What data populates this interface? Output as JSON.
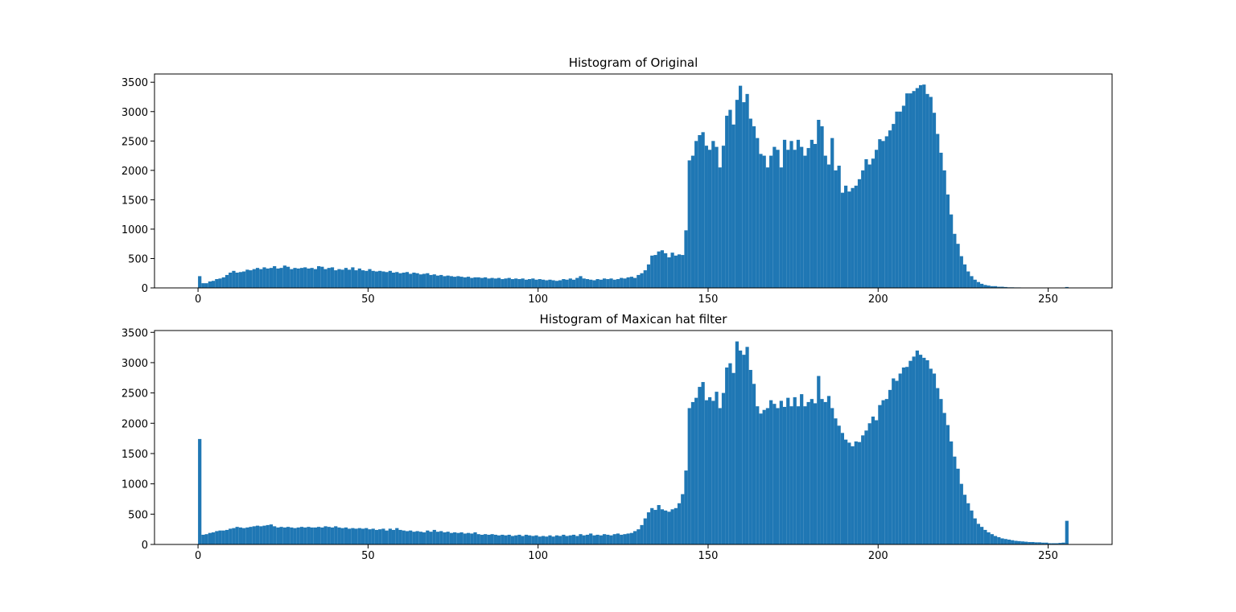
{
  "chart_data": [
    {
      "type": "histogram",
      "title": "Histogram of Original",
      "color": "#1f77b4",
      "xlim": [
        -12.8,
        268.8
      ],
      "ylim": [
        0,
        3640
      ],
      "xticks": [
        0,
        50,
        100,
        150,
        200,
        250
      ],
      "yticks": [
        0,
        500,
        1000,
        1500,
        2000,
        2500,
        3000,
        3500
      ],
      "bins": [
        0,
        1,
        2,
        3,
        4,
        5,
        6,
        7,
        8,
        9,
        10,
        11,
        12,
        13,
        14,
        15,
        16,
        17,
        18,
        19,
        20,
        21,
        22,
        23,
        24,
        25,
        26,
        27,
        28,
        29,
        30,
        31,
        32,
        33,
        34,
        35,
        36,
        37,
        38,
        39,
        40,
        41,
        42,
        43,
        44,
        45,
        46,
        47,
        48,
        49,
        50,
        51,
        52,
        53,
        54,
        55,
        56,
        57,
        58,
        59,
        60,
        61,
        62,
        63,
        64,
        65,
        66,
        67,
        68,
        69,
        70,
        71,
        72,
        73,
        74,
        75,
        76,
        77,
        78,
        79,
        80,
        81,
        82,
        83,
        84,
        85,
        86,
        87,
        88,
        89,
        90,
        91,
        92,
        93,
        94,
        95,
        96,
        97,
        98,
        99,
        100,
        101,
        102,
        103,
        104,
        105,
        106,
        107,
        108,
        109,
        110,
        111,
        112,
        113,
        114,
        115,
        116,
        117,
        118,
        119,
        120,
        121,
        122,
        123,
        124,
        125,
        126,
        127,
        128,
        129,
        130,
        131,
        132,
        133,
        134,
        135,
        136,
        137,
        138,
        139,
        140,
        141,
        142,
        143,
        144,
        145,
        146,
        147,
        148,
        149,
        150,
        151,
        152,
        153,
        154,
        155,
        156,
        157,
        158,
        159,
        160,
        161,
        162,
        163,
        164,
        165,
        166,
        167,
        168,
        169,
        170,
        171,
        172,
        173,
        174,
        175,
        176,
        177,
        178,
        179,
        180,
        181,
        182,
        183,
        184,
        185,
        186,
        187,
        188,
        189,
        190,
        191,
        192,
        193,
        194,
        195,
        196,
        197,
        198,
        199,
        200,
        201,
        202,
        203,
        204,
        205,
        206,
        207,
        208,
        209,
        210,
        211,
        212,
        213,
        214,
        215,
        216,
        217,
        218,
        219,
        220,
        221,
        222,
        223,
        224,
        225,
        226,
        227,
        228,
        229,
        230,
        231,
        232,
        233,
        234,
        235,
        236,
        237,
        238,
        239,
        240,
        241,
        242,
        243,
        244,
        245,
        246,
        247,
        248,
        249,
        250,
        251,
        252,
        253,
        254,
        255,
        256
      ],
      "values": [
        200,
        80,
        80,
        110,
        120,
        150,
        160,
        180,
        220,
        260,
        290,
        260,
        270,
        280,
        310,
        300,
        320,
        340,
        320,
        350,
        330,
        340,
        370,
        330,
        340,
        380,
        360,
        320,
        340,
        330,
        340,
        350,
        330,
        340,
        320,
        370,
        360,
        320,
        340,
        350,
        300,
        320,
        310,
        340,
        310,
        350,
        300,
        330,
        300,
        290,
        320,
        290,
        280,
        290,
        280,
        270,
        290,
        260,
        270,
        250,
        260,
        270,
        240,
        260,
        250,
        230,
        240,
        250,
        220,
        230,
        210,
        220,
        200,
        210,
        200,
        190,
        200,
        190,
        180,
        190,
        170,
        180,
        180,
        170,
        180,
        160,
        170,
        160,
        170,
        150,
        160,
        170,
        150,
        160,
        150,
        160,
        140,
        150,
        160,
        140,
        150,
        140,
        130,
        140,
        130,
        120,
        130,
        150,
        140,
        160,
        140,
        170,
        200,
        160,
        150,
        140,
        130,
        150,
        140,
        160,
        150,
        160,
        140,
        150,
        170,
        160,
        180,
        190,
        170,
        220,
        250,
        300,
        400,
        550,
        560,
        620,
        640,
        590,
        520,
        600,
        550,
        570,
        560,
        980,
        2170,
        2250,
        2500,
        2600,
        2650,
        2420,
        2350,
        2500,
        2400,
        2050,
        2420,
        2930,
        3030,
        2780,
        3200,
        3440,
        3160,
        3300,
        2880,
        2750,
        2550,
        2280,
        2250,
        2050,
        2250,
        2400,
        2350,
        2050,
        2520,
        2350,
        2500,
        2350,
        2520,
        2400,
        2250,
        2380,
        2520,
        2450,
        2860,
        2750,
        2250,
        2100,
        2550,
        2000,
        2080,
        1620,
        1740,
        1640,
        1700,
        1740,
        1850,
        2000,
        2190,
        2100,
        2200,
        2350,
        2530,
        2500,
        2580,
        2680,
        2790,
        3000,
        3000,
        3100,
        3310,
        3310,
        3350,
        3400,
        3450,
        3460,
        3300,
        3250,
        2980,
        2620,
        2300,
        2000,
        1590,
        1250,
        920,
        750,
        540,
        400,
        280,
        200,
        140,
        100,
        70,
        50,
        40,
        30,
        30,
        20,
        20,
        15,
        10,
        10,
        8,
        8,
        6,
        6,
        5,
        5,
        4,
        4,
        3,
        3,
        2,
        2,
        2,
        2,
        2,
        15
      ]
    },
    {
      "type": "histogram",
      "title": "Histogram of Maxican hat filter",
      "color": "#1f77b4",
      "xlim": [
        -12.8,
        268.8
      ],
      "ylim": [
        0,
        3530
      ],
      "xticks": [
        0,
        50,
        100,
        150,
        200,
        250
      ],
      "yticks": [
        0,
        500,
        1000,
        1500,
        2000,
        2500,
        3000,
        3500
      ],
      "bins": [
        0,
        1,
        2,
        3,
        4,
        5,
        6,
        7,
        8,
        9,
        10,
        11,
        12,
        13,
        14,
        15,
        16,
        17,
        18,
        19,
        20,
        21,
        22,
        23,
        24,
        25,
        26,
        27,
        28,
        29,
        30,
        31,
        32,
        33,
        34,
        35,
        36,
        37,
        38,
        39,
        40,
        41,
        42,
        43,
        44,
        45,
        46,
        47,
        48,
        49,
        50,
        51,
        52,
        53,
        54,
        55,
        56,
        57,
        58,
        59,
        60,
        61,
        62,
        63,
        64,
        65,
        66,
        67,
        68,
        69,
        70,
        71,
        72,
        73,
        74,
        75,
        76,
        77,
        78,
        79,
        80,
        81,
        82,
        83,
        84,
        85,
        86,
        87,
        88,
        89,
        90,
        91,
        92,
        93,
        94,
        95,
        96,
        97,
        98,
        99,
        100,
        101,
        102,
        103,
        104,
        105,
        106,
        107,
        108,
        109,
        110,
        111,
        112,
        113,
        114,
        115,
        116,
        117,
        118,
        119,
        120,
        121,
        122,
        123,
        124,
        125,
        126,
        127,
        128,
        129,
        130,
        131,
        132,
        133,
        134,
        135,
        136,
        137,
        138,
        139,
        140,
        141,
        142,
        143,
        144,
        145,
        146,
        147,
        148,
        149,
        150,
        151,
        152,
        153,
        154,
        155,
        156,
        157,
        158,
        159,
        160,
        161,
        162,
        163,
        164,
        165,
        166,
        167,
        168,
        169,
        170,
        171,
        172,
        173,
        174,
        175,
        176,
        177,
        178,
        179,
        180,
        181,
        182,
        183,
        184,
        185,
        186,
        187,
        188,
        189,
        190,
        191,
        192,
        193,
        194,
        195,
        196,
        197,
        198,
        199,
        200,
        201,
        202,
        203,
        204,
        205,
        206,
        207,
        208,
        209,
        210,
        211,
        212,
        213,
        214,
        215,
        216,
        217,
        218,
        219,
        220,
        221,
        222,
        223,
        224,
        225,
        226,
        227,
        228,
        229,
        230,
        231,
        232,
        233,
        234,
        235,
        236,
        237,
        238,
        239,
        240,
        241,
        242,
        243,
        244,
        245,
        246,
        247,
        248,
        249,
        250,
        251,
        252,
        253,
        254,
        255,
        256
      ],
      "values": [
        1740,
        160,
        170,
        190,
        200,
        220,
        230,
        230,
        240,
        260,
        270,
        290,
        280,
        270,
        280,
        290,
        300,
        310,
        300,
        310,
        320,
        330,
        300,
        280,
        290,
        280,
        290,
        280,
        270,
        280,
        290,
        280,
        290,
        280,
        280,
        290,
        280,
        300,
        290,
        280,
        300,
        280,
        270,
        280,
        260,
        270,
        260,
        270,
        260,
        270,
        250,
        260,
        240,
        250,
        260,
        230,
        260,
        240,
        270,
        240,
        230,
        220,
        230,
        210,
        220,
        210,
        200,
        230,
        210,
        240,
        210,
        220,
        200,
        210,
        190,
        200,
        190,
        200,
        180,
        190,
        180,
        200,
        170,
        160,
        170,
        160,
        170,
        160,
        150,
        160,
        150,
        160,
        140,
        150,
        160,
        140,
        160,
        150,
        140,
        150,
        130,
        140,
        130,
        150,
        130,
        150,
        140,
        160,
        140,
        150,
        160,
        140,
        170,
        150,
        160,
        180,
        150,
        160,
        150,
        170,
        160,
        150,
        170,
        180,
        160,
        170,
        180,
        190,
        220,
        250,
        320,
        430,
        530,
        600,
        570,
        650,
        580,
        560,
        540,
        580,
        600,
        680,
        830,
        1220,
        2250,
        2350,
        2420,
        2600,
        2680,
        2380,
        2430,
        2370,
        2520,
        2250,
        2500,
        2920,
        2990,
        2830,
        3350,
        3200,
        3130,
        3260,
        2880,
        2650,
        2280,
        2160,
        2220,
        2250,
        2380,
        2320,
        2250,
        2370,
        2270,
        2420,
        2280,
        2430,
        2280,
        2480,
        2280,
        2350,
        2400,
        2330,
        2780,
        2400,
        2350,
        2450,
        2250,
        2080,
        1960,
        1840,
        1730,
        1680,
        1620,
        1700,
        1690,
        1800,
        1880,
        2000,
        2110,
        2050,
        2300,
        2380,
        2400,
        2550,
        2740,
        2700,
        2820,
        2920,
        2930,
        3030,
        3100,
        3200,
        3130,
        3080,
        3040,
        2900,
        2820,
        2580,
        2400,
        2170,
        1970,
        1700,
        1450,
        1250,
        1000,
        820,
        680,
        560,
        430,
        340,
        290,
        240,
        200,
        170,
        140,
        120,
        100,
        90,
        80,
        70,
        60,
        55,
        50,
        45,
        40,
        40,
        35,
        35,
        30,
        30,
        20,
        20,
        20,
        25,
        30,
        390
      ]
    }
  ]
}
